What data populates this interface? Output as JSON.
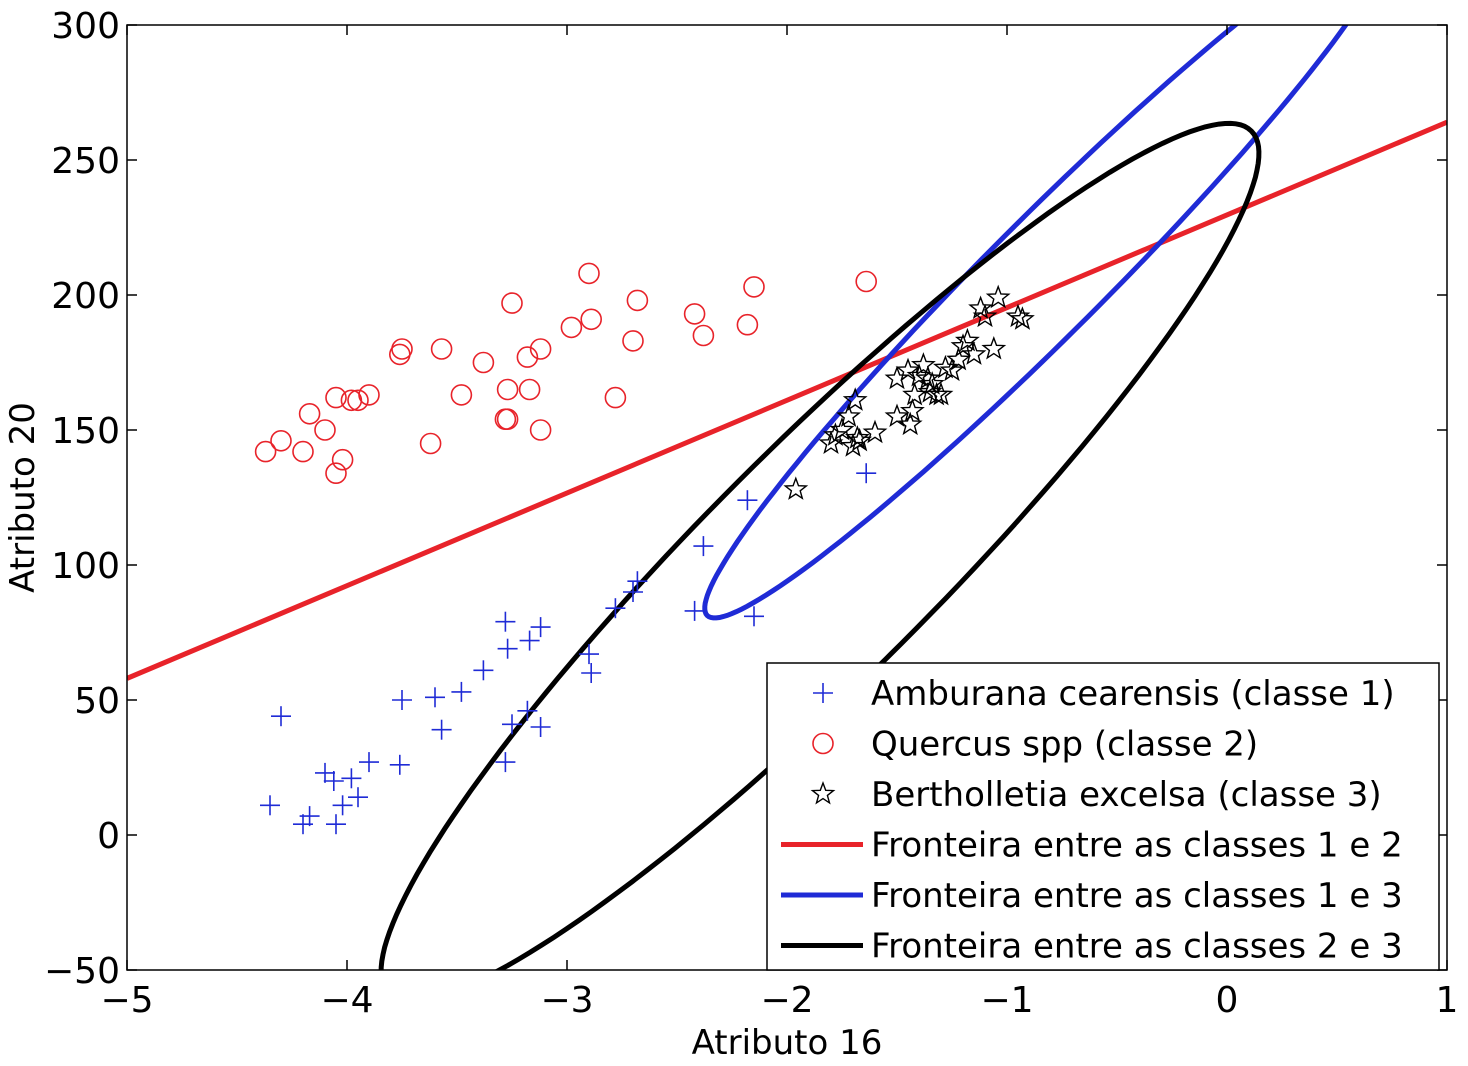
{
  "chart_data": {
    "type": "scatter",
    "xlabel": "Atributo 16",
    "ylabel": "Atributo 20",
    "xlim": [
      -5,
      1
    ],
    "ylim": [
      -50,
      300
    ],
    "xticks": [
      -5,
      -4,
      -3,
      -2,
      -1,
      0,
      1
    ],
    "yticks": [
      -50,
      0,
      50,
      100,
      150,
      200,
      250,
      300
    ],
    "xtick_labels": [
      "−5",
      "−4",
      "−3",
      "−2",
      "−1",
      "0",
      "1"
    ],
    "ytick_labels": [
      "−50",
      "0",
      "50",
      "100",
      "150",
      "200",
      "250",
      "300"
    ],
    "grid": false,
    "legend_position": "bottom-right",
    "series": [
      {
        "name": "Amburana cearensis (classe 1)",
        "marker": "plus",
        "color": "#1f2bd6",
        "points": [
          [
            -4.35,
            11
          ],
          [
            -4.3,
            44
          ],
          [
            -4.2,
            4
          ],
          [
            -4.17,
            7
          ],
          [
            -4.1,
            23
          ],
          [
            -4.06,
            20
          ],
          [
            -4.05,
            4
          ],
          [
            -4.02,
            11
          ],
          [
            -3.98,
            21
          ],
          [
            -3.95,
            14
          ],
          [
            -3.9,
            27
          ],
          [
            -3.76,
            26
          ],
          [
            -3.75,
            50
          ],
          [
            -3.6,
            51
          ],
          [
            -3.57,
            39
          ],
          [
            -3.48,
            53
          ],
          [
            -3.38,
            61
          ],
          [
            -3.28,
            79
          ],
          [
            -3.28,
            27
          ],
          [
            -3.27,
            69
          ],
          [
            -3.25,
            41
          ],
          [
            -3.18,
            46
          ],
          [
            -3.17,
            72
          ],
          [
            -3.12,
            40
          ],
          [
            -3.12,
            77
          ],
          [
            -2.9,
            67
          ],
          [
            -2.89,
            60
          ],
          [
            -2.78,
            84
          ],
          [
            -2.7,
            90
          ],
          [
            -2.68,
            94
          ],
          [
            -2.42,
            83
          ],
          [
            -2.38,
            107
          ],
          [
            -2.18,
            124
          ],
          [
            -2.15,
            81
          ],
          [
            -1.64,
            134
          ]
        ]
      },
      {
        "name": "Quercus spp (classe 2)",
        "marker": "circle",
        "color": "#e8232a",
        "points": [
          [
            -4.37,
            142
          ],
          [
            -4.3,
            146
          ],
          [
            -4.2,
            142
          ],
          [
            -4.17,
            156
          ],
          [
            -4.1,
            150
          ],
          [
            -4.05,
            134
          ],
          [
            -4.05,
            162
          ],
          [
            -4.02,
            139
          ],
          [
            -3.98,
            161
          ],
          [
            -3.95,
            161
          ],
          [
            -3.9,
            163
          ],
          [
            -3.76,
            178
          ],
          [
            -3.75,
            180
          ],
          [
            -3.62,
            145
          ],
          [
            -3.57,
            180
          ],
          [
            -3.48,
            163
          ],
          [
            -3.38,
            175
          ],
          [
            -3.28,
            154
          ],
          [
            -3.27,
            165
          ],
          [
            -3.27,
            154
          ],
          [
            -3.25,
            197
          ],
          [
            -3.18,
            177
          ],
          [
            -3.17,
            165
          ],
          [
            -3.12,
            180
          ],
          [
            -3.12,
            150
          ],
          [
            -2.98,
            188
          ],
          [
            -2.9,
            208
          ],
          [
            -2.89,
            191
          ],
          [
            -2.78,
            162
          ],
          [
            -2.7,
            183
          ],
          [
            -2.68,
            198
          ],
          [
            -2.42,
            193
          ],
          [
            -2.38,
            185
          ],
          [
            -2.18,
            189
          ],
          [
            -2.15,
            203
          ],
          [
            -1.64,
            205
          ]
        ]
      },
      {
        "name": "Bertholletia excelsa (classe 3)",
        "marker": "star",
        "color": "#000000",
        "points": [
          [
            -1.96,
            128
          ],
          [
            -1.8,
            145
          ],
          [
            -1.78,
            148
          ],
          [
            -1.75,
            150
          ],
          [
            -1.72,
            155
          ],
          [
            -1.7,
            144
          ],
          [
            -1.69,
            161
          ],
          [
            -1.68,
            147
          ],
          [
            -1.67,
            146
          ],
          [
            -1.6,
            149
          ],
          [
            -1.5,
            155
          ],
          [
            -1.5,
            169
          ],
          [
            -1.45,
            172
          ],
          [
            -1.44,
            152
          ],
          [
            -1.43,
            157
          ],
          [
            -1.42,
            163
          ],
          [
            -1.4,
            170
          ],
          [
            -1.38,
            174
          ],
          [
            -1.36,
            169
          ],
          [
            -1.35,
            164
          ],
          [
            -1.34,
            167
          ],
          [
            -1.32,
            163
          ],
          [
            -1.3,
            163
          ],
          [
            -1.28,
            173
          ],
          [
            -1.25,
            172
          ],
          [
            -1.22,
            176
          ],
          [
            -1.2,
            181
          ],
          [
            -1.18,
            183
          ],
          [
            -1.15,
            178
          ],
          [
            -1.12,
            195
          ],
          [
            -1.1,
            192
          ],
          [
            -1.06,
            180
          ],
          [
            -1.04,
            199
          ],
          [
            -0.95,
            192
          ],
          [
            -0.93,
            191
          ]
        ]
      }
    ],
    "boundaries": [
      {
        "name": "Fronteira entre as classes 1 e 2",
        "color": "#e8232a",
        "shape": "line",
        "points": [
          [
            -5,
            58
          ],
          [
            1,
            264
          ]
        ]
      },
      {
        "name": "Fronteira entre as classes 1 e 3",
        "color": "#1f2bd6",
        "shape": "ellipse",
        "center": [
          -0.82,
          207
        ],
        "semi_axes": [
          1.5,
          9.8
        ],
        "point_angle_deg": 45
      },
      {
        "name": "Fronteira entre as classes 2 e 3",
        "color": "#000000",
        "shape": "ellipse",
        "center": [
          -1.85,
          101
        ],
        "semi_axes": [
          3.25,
          28.5
        ],
        "point_angle_deg": 45
      }
    ]
  }
}
